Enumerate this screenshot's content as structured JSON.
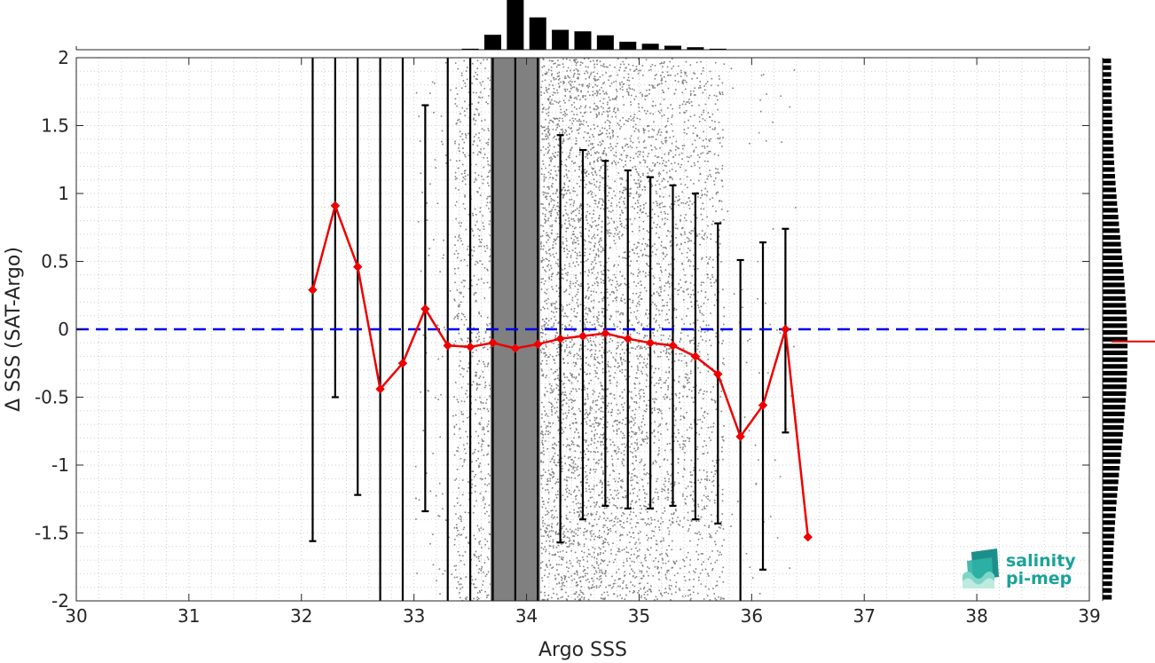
{
  "chart_data": {
    "type": "scatter",
    "xlabel": "Argo SSS",
    "ylabel": "Δ SSS (SAT-Argo)",
    "xlim": [
      30,
      39
    ],
    "ylim": [
      -2,
      2
    ],
    "x_ticks": [
      30,
      31,
      32,
      33,
      34,
      35,
      36,
      37,
      38,
      39
    ],
    "y_ticks": [
      -2,
      -1.5,
      -1,
      -0.5,
      0,
      0.5,
      1,
      1.5,
      2
    ],
    "y_tick_labels": [
      "-2",
      "-1.5",
      "-1",
      "-0.5",
      "0",
      "0.5",
      "1",
      "1.5",
      "2"
    ],
    "grid": "minor dotted",
    "zero_line": {
      "y": 0,
      "style": "dashed",
      "color": "#0000ee"
    },
    "scatter_color": "#808080",
    "series": [
      {
        "type": "line",
        "color": "#ee0000",
        "marker": "diamond",
        "x": [
          32.1,
          32.3,
          32.5,
          32.7,
          32.9,
          33.1,
          33.3,
          33.5,
          33.7,
          33.9,
          34.1,
          34.3,
          34.5,
          34.7,
          34.9,
          35.1,
          35.3,
          35.5,
          35.7,
          35.9,
          36.1,
          36.3,
          36.5
        ],
        "y": [
          0.29,
          0.91,
          0.46,
          -0.44,
          -0.25,
          0.15,
          -0.12,
          -0.13,
          -0.1,
          -0.14,
          -0.11,
          -0.07,
          -0.05,
          -0.03,
          -0.07,
          -0.1,
          -0.12,
          -0.2,
          -0.33,
          -0.79,
          -0.56,
          0.0,
          -1.53
        ]
      },
      {
        "type": "errorbar",
        "color": "#000000",
        "x": [
          32.1,
          32.3,
          32.5,
          32.7,
          32.9,
          33.1,
          33.3,
          33.5,
          33.7,
          33.9,
          34.1,
          34.3,
          34.5,
          34.7,
          34.9,
          35.1,
          35.3,
          35.5,
          35.7,
          35.9,
          36.1,
          36.3
        ],
        "lower": [
          -1.56,
          -0.5,
          -1.22,
          -2.0,
          -2.0,
          -1.34,
          -2.0,
          -2.0,
          -2.0,
          -2.0,
          -2.0,
          -1.57,
          -1.4,
          -1.3,
          -1.32,
          -1.32,
          -1.3,
          -1.4,
          -1.43,
          -2.0,
          -1.77,
          -0.76
        ],
        "upper": [
          2.0,
          2.0,
          2.0,
          2.0,
          2.0,
          1.65,
          2.0,
          2.0,
          2.0,
          2.0,
          2.0,
          1.43,
          1.32,
          1.24,
          1.17,
          1.12,
          1.06,
          1.0,
          0.78,
          0.51,
          0.64,
          0.74
        ]
      }
    ],
    "top_histogram": {
      "x": [
        33.5,
        33.7,
        33.9,
        34.1,
        34.3,
        34.5,
        34.7,
        34.9,
        35.1,
        35.3,
        35.5,
        35.7
      ],
      "relative_counts": [
        0.02,
        0.3,
        1.0,
        0.65,
        0.4,
        0.37,
        0.29,
        0.16,
        0.12,
        0.08,
        0.05,
        0.02
      ]
    },
    "right_histogram": {
      "mean_marker_y": -0.09,
      "marker_color": "#ee0000"
    }
  },
  "logo": {
    "line1": "salinity",
    "line2": "pi-mep",
    "color": "#1aa39a"
  }
}
